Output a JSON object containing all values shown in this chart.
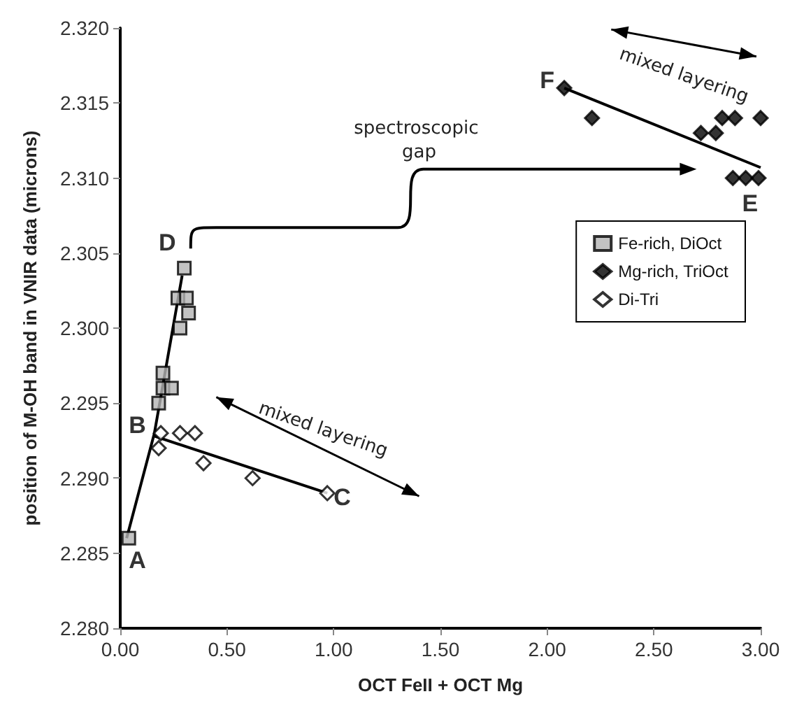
{
  "chart_data": {
    "type": "scatter",
    "xlabel": "OCT FeII + OCT Mg",
    "ylabel": "position of M-OH band in VNIR data (microns)",
    "xlim": [
      0,
      3
    ],
    "ylim": [
      2.28,
      2.32
    ],
    "xticks": [
      {
        "value": 0,
        "label": "0.00"
      },
      {
        "value": 0.5,
        "label": "0.50"
      },
      {
        "value": 1,
        "label": "1.00"
      },
      {
        "value": 1.5,
        "label": "1.50"
      },
      {
        "value": 2,
        "label": "2.00"
      },
      {
        "value": 2.5,
        "label": "2.50"
      },
      {
        "value": 3,
        "label": "3.00"
      }
    ],
    "yticks": [
      {
        "value": 2.28,
        "label": "2.280"
      },
      {
        "value": 2.285,
        "label": "2.285"
      },
      {
        "value": 2.29,
        "label": "2.290"
      },
      {
        "value": 2.295,
        "label": "2.295"
      },
      {
        "value": 2.3,
        "label": "2.300"
      },
      {
        "value": 2.305,
        "label": "2.305"
      },
      {
        "value": 2.31,
        "label": "2.310"
      },
      {
        "value": 2.315,
        "label": "2.315"
      },
      {
        "value": 2.32,
        "label": "2.320"
      }
    ],
    "grid": false,
    "legend": "right",
    "series": [
      {
        "type": "line",
        "color": "#000000",
        "marker": "none",
        "x": [
          0.03,
          0.16,
          0.29
        ],
        "values": [
          2.286,
          2.293,
          2.3035
        ]
      },
      {
        "type": "line",
        "color": "#000000",
        "marker": "none",
        "x": [
          0.16,
          0.97
        ],
        "values": [
          2.2928,
          2.289
        ]
      },
      {
        "type": "line",
        "color": "#000000",
        "marker": "none",
        "x": [
          2.08,
          3.0
        ],
        "values": [
          2.316,
          2.3107
        ]
      },
      {
        "name": "Fe-rich, DiOct",
        "color": "#b4b4b4",
        "marker": "square",
        "x": [
          0.04,
          0.18,
          0.2,
          0.2,
          0.24,
          0.28,
          0.27,
          0.31,
          0.32,
          0.3
        ],
        "values": [
          2.286,
          2.295,
          2.297,
          2.296,
          2.296,
          2.3,
          2.302,
          2.302,
          2.301,
          2.304
        ]
      },
      {
        "name": "Mg-rich, TriOct",
        "color": "#000000",
        "marker": "diamond",
        "x": [
          2.08,
          2.21,
          2.72,
          2.79,
          2.82,
          2.88,
          3.0,
          2.87,
          2.93,
          2.99
        ],
        "values": [
          2.316,
          2.314,
          2.313,
          2.313,
          2.314,
          2.314,
          2.314,
          2.31,
          2.31,
          2.31
        ]
      },
      {
        "name": "Di-Tri",
        "color": "#ffffff",
        "marker": "diamond",
        "x": [
          0.19,
          0.18,
          0.28,
          0.35,
          0.39,
          0.62,
          0.97
        ],
        "values": [
          2.293,
          2.292,
          2.293,
          2.293,
          2.291,
          2.29,
          2.289
        ]
      }
    ],
    "annotations": [
      "A",
      "B",
      "C",
      "D",
      "E",
      "F",
      "mixed layering",
      "mixed layering",
      "spectroscopic gap"
    ]
  }
}
